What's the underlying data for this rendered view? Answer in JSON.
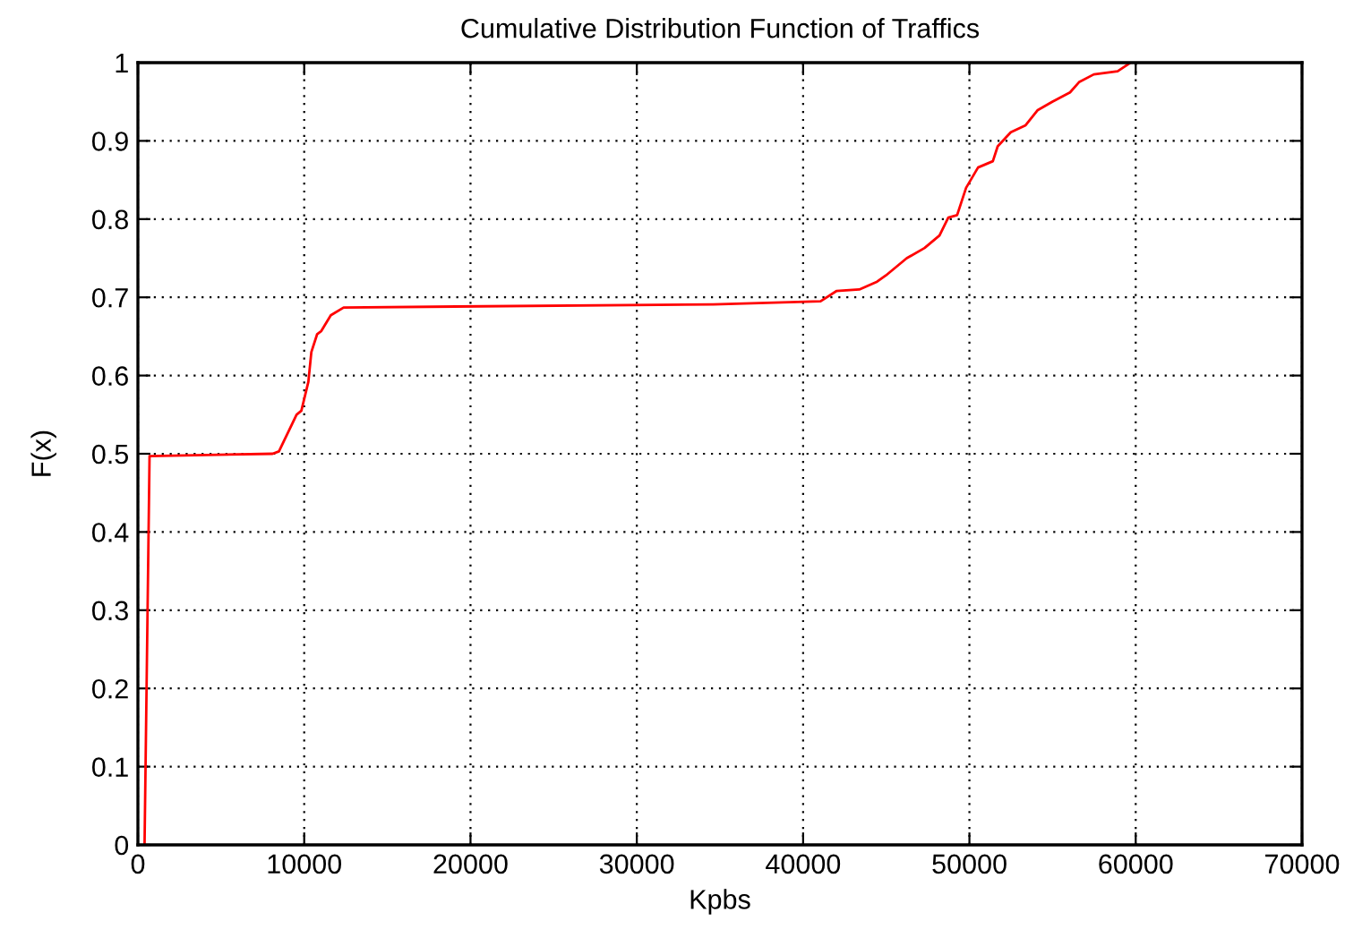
{
  "chart_data": {
    "type": "line",
    "title": "Cumulative Distribution Function of Traffics",
    "xlabel": "Kpbs",
    "ylabel": "F(x)",
    "series": [
      {
        "color": "#ff0000",
        "x": [
          400,
          700,
          8100,
          8480,
          9540,
          9830,
          10250,
          10430,
          10780,
          11030,
          11600,
          12370,
          34600,
          41050,
          42000,
          43380,
          44450,
          44980,
          46230,
          47300,
          48200,
          48730,
          49260,
          49800,
          50520,
          51410,
          51700,
          52490,
          53380,
          54090,
          54980,
          56050,
          56590,
          57480,
          58910,
          59620
        ],
        "values": [
          0,
          0.497,
          0.5,
          0.503,
          0.55,
          0.555,
          0.592,
          0.63,
          0.653,
          0.657,
          0.677,
          0.687,
          0.691,
          0.695,
          0.708,
          0.71,
          0.72,
          0.728,
          0.75,
          0.763,
          0.779,
          0.802,
          0.805,
          0.84,
          0.866,
          0.874,
          0.893,
          0.911,
          0.92,
          0.939,
          0.95,
          0.962,
          0.975,
          0.985,
          0.989,
          0.999
        ]
      }
    ],
    "xlim": [
      0,
      70000
    ],
    "xticks": [
      0,
      10000,
      20000,
      30000,
      40000,
      50000,
      60000,
      70000
    ],
    "ylim": [
      0,
      1
    ],
    "yticks": [
      0,
      0.1,
      0.2,
      0.3,
      0.4,
      0.5,
      0.6,
      0.7,
      0.8,
      0.9,
      1
    ],
    "grid": true,
    "marker": "none",
    "line_style": "solid"
  }
}
